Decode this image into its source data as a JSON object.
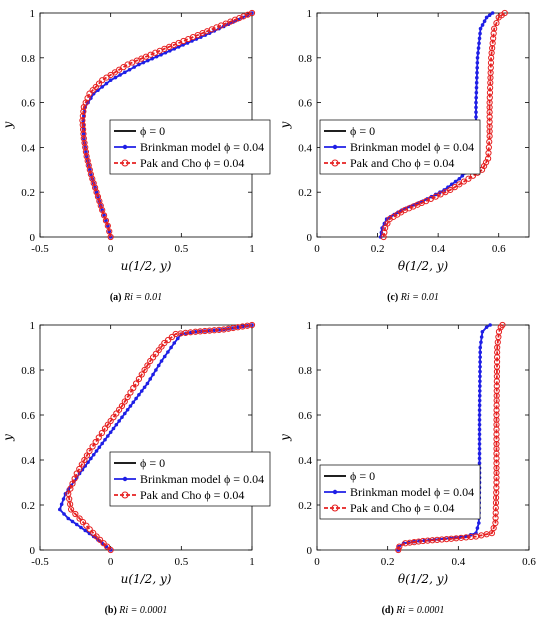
{
  "chart_data": [
    {
      "type": "line",
      "caption_letter": "(a)",
      "caption_text": "Ri = 0.01",
      "xlabel": "u(1/2, y)",
      "ylabel": "y",
      "xlim": [
        -0.5,
        1
      ],
      "ylim": [
        0,
        1
      ],
      "xticks": [
        -0.5,
        0,
        0.5,
        1
      ],
      "xtick_labels": [
        "-0.5",
        "0",
        "0.5",
        "1"
      ],
      "yticks": [
        0,
        0.2,
        0.4,
        0.6,
        0.8,
        1
      ],
      "ytick_labels": [
        "0",
        "0.2",
        "0.4",
        "0.6",
        "0.8",
        "1"
      ],
      "grid": false,
      "legend_position": "right-middle",
      "series": [
        {
          "name": "ϕ = 0",
          "color": "#000000",
          "marker": "none",
          "x": [
            0,
            -0.02,
            -0.06,
            -0.1,
            -0.14,
            -0.17,
            -0.19,
            -0.195,
            -0.18,
            -0.12,
            0.0,
            0.2,
            0.45,
            0.7,
            0.9,
            1.0
          ],
          "y": [
            0,
            0.05,
            0.12,
            0.2,
            0.28,
            0.36,
            0.44,
            0.52,
            0.58,
            0.64,
            0.7,
            0.77,
            0.84,
            0.91,
            0.97,
            1.0
          ]
        },
        {
          "name": "Brinkman model ϕ = 0.04",
          "color": "#1f1fe6",
          "marker": "dot",
          "x": [
            0,
            -0.02,
            -0.06,
            -0.1,
            -0.14,
            -0.17,
            -0.19,
            -0.195,
            -0.18,
            -0.12,
            0.0,
            0.2,
            0.45,
            0.7,
            0.9,
            1.0
          ],
          "y": [
            0,
            0.05,
            0.12,
            0.2,
            0.28,
            0.36,
            0.44,
            0.52,
            0.58,
            0.64,
            0.7,
            0.77,
            0.84,
            0.91,
            0.97,
            1.0
          ]
        },
        {
          "name": "Pak and Cho ϕ = 0.04",
          "color": "#e62020",
          "marker": "circle",
          "x": [
            0,
            -0.02,
            -0.06,
            -0.1,
            -0.14,
            -0.17,
            -0.19,
            -0.2,
            -0.19,
            -0.15,
            -0.06,
            0.12,
            0.38,
            0.65,
            0.88,
            1.0
          ],
          "y": [
            0,
            0.05,
            0.12,
            0.2,
            0.28,
            0.36,
            0.44,
            0.52,
            0.58,
            0.64,
            0.7,
            0.77,
            0.84,
            0.91,
            0.97,
            1.0
          ]
        }
      ]
    },
    {
      "type": "line",
      "caption_letter": "(c)",
      "caption_text": "Ri = 0.01",
      "xlabel": "θ(1/2, y)",
      "ylabel": "y",
      "xlim": [
        0,
        0.7
      ],
      "ylim": [
        0,
        1
      ],
      "xticks": [
        0,
        0.2,
        0.4,
        0.6
      ],
      "xtick_labels": [
        "0",
        "0.2",
        "0.4",
        "0.6"
      ],
      "yticks": [
        0,
        0.2,
        0.4,
        0.6,
        0.8,
        1
      ],
      "ytick_labels": [
        "0",
        "0.2",
        "0.4",
        "0.6",
        "0.8",
        "1"
      ],
      "grid": false,
      "legend_position": "left-middle",
      "series": [
        {
          "name": "ϕ = 0",
          "color": "#000000",
          "marker": "none",
          "x": [
            0.21,
            0.215,
            0.23,
            0.28,
            0.35,
            0.42,
            0.47,
            0.5,
            0.52,
            0.525,
            0.525,
            0.53,
            0.54,
            0.56,
            0.58
          ],
          "y": [
            0,
            0.04,
            0.08,
            0.12,
            0.16,
            0.21,
            0.26,
            0.3,
            0.35,
            0.45,
            0.6,
            0.8,
            0.93,
            0.98,
            1.0
          ]
        },
        {
          "name": "Brinkman model ϕ = 0.04",
          "color": "#1f1fe6",
          "marker": "dot",
          "x": [
            0.21,
            0.215,
            0.23,
            0.28,
            0.35,
            0.42,
            0.47,
            0.5,
            0.52,
            0.525,
            0.525,
            0.53,
            0.54,
            0.56,
            0.58
          ],
          "y": [
            0,
            0.04,
            0.08,
            0.12,
            0.16,
            0.21,
            0.26,
            0.3,
            0.35,
            0.45,
            0.6,
            0.8,
            0.93,
            0.98,
            1.0
          ]
        },
        {
          "name": "Pak and Cho ϕ = 0.04",
          "color": "#e62020",
          "marker": "circle",
          "x": [
            0.22,
            0.225,
            0.24,
            0.29,
            0.36,
            0.44,
            0.5,
            0.545,
            0.565,
            0.57,
            0.57,
            0.575,
            0.585,
            0.6,
            0.62
          ],
          "y": [
            0,
            0.04,
            0.08,
            0.12,
            0.16,
            0.21,
            0.26,
            0.3,
            0.35,
            0.45,
            0.6,
            0.8,
            0.93,
            0.98,
            1.0
          ]
        }
      ]
    },
    {
      "type": "line",
      "caption_letter": "(b)",
      "caption_text": "Ri = 0.0001",
      "xlabel": "u(1/2, y)",
      "ylabel": "y",
      "xlim": [
        -0.5,
        1
      ],
      "ylim": [
        0,
        1
      ],
      "xticks": [
        -0.5,
        0,
        0.5,
        1
      ],
      "xtick_labels": [
        "-0.5",
        "0",
        "0.5",
        "1"
      ],
      "yticks": [
        0,
        0.2,
        0.4,
        0.6,
        0.8,
        1
      ],
      "ytick_labels": [
        "0",
        "0.2",
        "0.4",
        "0.6",
        "0.8",
        "1"
      ],
      "grid": false,
      "legend_position": "right-middle",
      "series": [
        {
          "name": "ϕ = 0",
          "color": "#000000",
          "marker": "none",
          "x": [
            0,
            -0.12,
            -0.3,
            -0.36,
            -0.32,
            -0.22,
            -0.1,
            0.02,
            0.14,
            0.26,
            0.36,
            0.45,
            0.5,
            0.6,
            0.8,
            1.0
          ],
          "y": [
            0,
            0.06,
            0.14,
            0.18,
            0.25,
            0.34,
            0.44,
            0.54,
            0.64,
            0.74,
            0.84,
            0.92,
            0.96,
            0.97,
            0.98,
            1.0
          ]
        },
        {
          "name": "Brinkman model ϕ = 0.04",
          "color": "#1f1fe6",
          "marker": "dot",
          "x": [
            0,
            -0.12,
            -0.3,
            -0.36,
            -0.32,
            -0.22,
            -0.1,
            0.02,
            0.14,
            0.26,
            0.36,
            0.45,
            0.5,
            0.6,
            0.8,
            1.0
          ],
          "y": [
            0,
            0.06,
            0.14,
            0.18,
            0.25,
            0.34,
            0.44,
            0.54,
            0.64,
            0.74,
            0.84,
            0.92,
            0.96,
            0.97,
            0.98,
            1.0
          ]
        },
        {
          "name": "Pak and Cho ϕ = 0.04",
          "color": "#e62020",
          "marker": "circle",
          "x": [
            0,
            -0.1,
            -0.22,
            -0.28,
            -0.3,
            -0.24,
            -0.15,
            -0.04,
            0.08,
            0.18,
            0.28,
            0.38,
            0.46,
            0.6,
            0.8,
            1.0
          ],
          "y": [
            0,
            0.06,
            0.14,
            0.18,
            0.25,
            0.34,
            0.44,
            0.54,
            0.64,
            0.74,
            0.84,
            0.92,
            0.96,
            0.97,
            0.98,
            1.0
          ]
        }
      ]
    },
    {
      "type": "line",
      "caption_letter": "(d)",
      "caption_text": "Ri = 0.0001",
      "xlabel": "θ(1/2, y)",
      "ylabel": "y",
      "xlim": [
        0,
        0.6
      ],
      "ylim": [
        0,
        1
      ],
      "xticks": [
        0,
        0.2,
        0.4,
        0.6
      ],
      "xtick_labels": [
        "0",
        "0.2",
        "0.4",
        "0.6"
      ],
      "yticks": [
        0,
        0.2,
        0.4,
        0.6,
        0.8,
        1
      ],
      "ytick_labels": [
        "0",
        "0.2",
        "0.4",
        "0.6",
        "0.8",
        "1"
      ],
      "grid": false,
      "legend_position": "left-middle",
      "series": [
        {
          "name": "ϕ = 0",
          "color": "#000000",
          "marker": "none",
          "x": [
            0.23,
            0.232,
            0.245,
            0.29,
            0.36,
            0.42,
            0.45,
            0.458,
            0.46,
            0.46,
            0.462,
            0.468,
            0.48,
            0.49
          ],
          "y": [
            0,
            0.015,
            0.03,
            0.04,
            0.05,
            0.06,
            0.075,
            0.12,
            0.3,
            0.6,
            0.9,
            0.97,
            0.99,
            1.0
          ]
        },
        {
          "name": "Brinkman model ϕ = 0.04",
          "color": "#1f1fe6",
          "marker": "dot",
          "x": [
            0.23,
            0.232,
            0.245,
            0.29,
            0.36,
            0.42,
            0.45,
            0.458,
            0.46,
            0.46,
            0.462,
            0.468,
            0.48,
            0.49
          ],
          "y": [
            0,
            0.015,
            0.03,
            0.04,
            0.05,
            0.06,
            0.075,
            0.12,
            0.3,
            0.6,
            0.9,
            0.97,
            0.99,
            1.0
          ]
        },
        {
          "name": "Pak and Cho ϕ = 0.04",
          "color": "#e62020",
          "marker": "circle",
          "x": [
            0.23,
            0.233,
            0.25,
            0.3,
            0.38,
            0.45,
            0.495,
            0.505,
            0.508,
            0.508,
            0.51,
            0.515,
            0.52,
            0.525
          ],
          "y": [
            0,
            0.015,
            0.03,
            0.04,
            0.05,
            0.06,
            0.075,
            0.12,
            0.3,
            0.6,
            0.9,
            0.97,
            0.99,
            1.0
          ]
        }
      ]
    }
  ]
}
